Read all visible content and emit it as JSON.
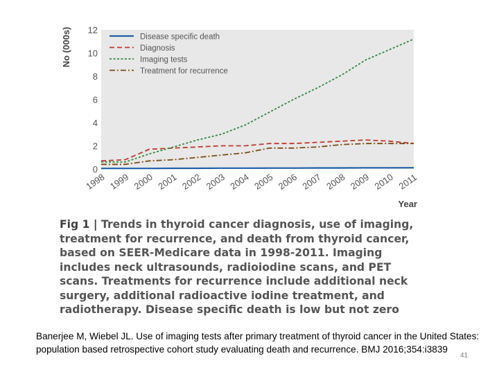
{
  "chart_data": {
    "type": "line",
    "x": [
      1998,
      1999,
      2000,
      2001,
      2002,
      2003,
      2004,
      2005,
      2006,
      2007,
      2008,
      2009,
      2010,
      2011
    ],
    "tick_labels": [
      "1998",
      "1999",
      "2000",
      "2001",
      "2002",
      "2003",
      "2004",
      "2005",
      "2006",
      "2007",
      "2008",
      "2009",
      "2010",
      "2011"
    ],
    "series": [
      {
        "name": "Disease specific death",
        "color": "#1f5fa8",
        "style": "solid",
        "values": [
          0.05,
          0.05,
          0.05,
          0.06,
          0.06,
          0.07,
          0.07,
          0.08,
          0.08,
          0.09,
          0.09,
          0.1,
          0.1,
          0.11
        ]
      },
      {
        "name": "Diagnosis",
        "color": "#c0392b",
        "style": "dashed",
        "values": [
          0.7,
          0.8,
          1.7,
          1.8,
          1.9,
          2.0,
          2.0,
          2.2,
          2.2,
          2.3,
          2.4,
          2.5,
          2.4,
          2.2
        ]
      },
      {
        "name": "Imaging tests",
        "color": "#2e8b3e",
        "style": "dotted",
        "values": [
          0.6,
          0.6,
          1.3,
          1.9,
          2.5,
          3.0,
          3.8,
          4.9,
          6.0,
          7.0,
          8.1,
          9.4,
          10.3,
          11.2
        ]
      },
      {
        "name": "Treatment for recurrence",
        "color": "#7a4a12",
        "style": "dashdot",
        "values": [
          0.4,
          0.4,
          0.7,
          0.8,
          1.0,
          1.2,
          1.4,
          1.8,
          1.8,
          1.9,
          2.1,
          2.2,
          2.2,
          2.2
        ]
      }
    ],
    "ylabel": "No (000s)",
    "xlabel": "Year",
    "ylim": [
      0,
      12
    ],
    "yticks": [
      0,
      2,
      4,
      6,
      8,
      10,
      12
    ],
    "grid": false,
    "legend": "top-left",
    "background": "#e8e8e8"
  },
  "caption": {
    "label": "Fig 1 |",
    "text": "Trends in thyroid cancer diagnosis, use of imaging, treatment for recurrence, and death from thyroid cancer, based on SEER-Medicare data in 1998-2011. Imaging includes neck ultrasounds, radioiodine scans, and PET scans. Treatments for recurrence include additional neck surgery, additional radioactive iodine treatment, and radiotherapy. Disease specific death is low but not zero"
  },
  "citation": "Banerjee M, Wiebel JL. Use of imaging tests after primary treatment of thyroid cancer in the United States: population based retrospective cohort study evaluating death and recurrence. BMJ 2016;354:i3839",
  "slide_number": "41"
}
